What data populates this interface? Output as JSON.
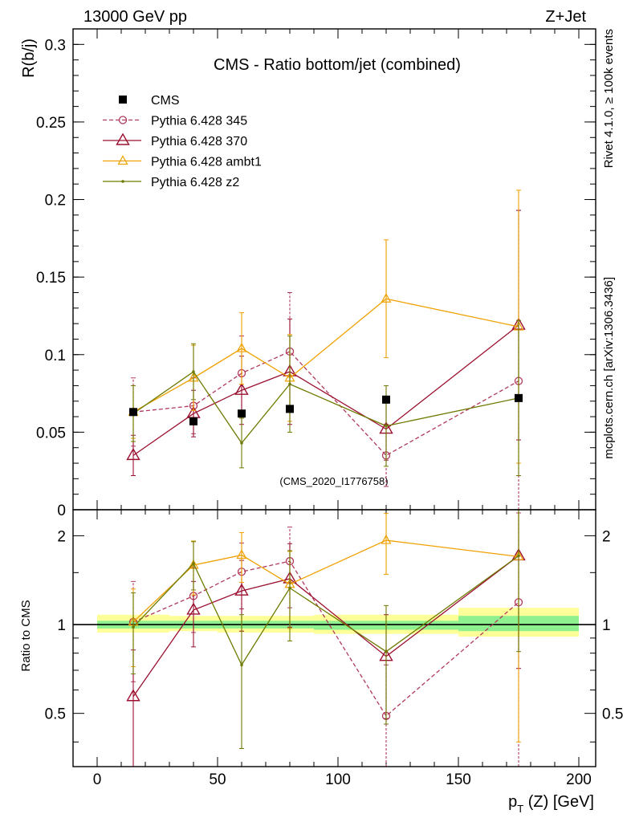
{
  "header": {
    "energy_label": "13000 GeV pp",
    "process_label": "Z+Jet"
  },
  "side_labels": {
    "rivet": "Rivet 4.1.0, ≥ 100k events",
    "mcplots": "mcplots.cern.ch [arXiv:1306.3436]"
  },
  "analysis_id": "(CMS_2020_I1776758)",
  "chart_data": [
    {
      "type": "scatter",
      "title": "CMS - Ratio bottom/jet (combined)",
      "ylabel": "R(b/j)",
      "xlabel": "p_T (Z) [GeV]",
      "xlim": [
        -10,
        207
      ],
      "ylim": [
        0,
        0.31
      ],
      "yticks": [
        0,
        0.05,
        0.1,
        0.15,
        0.2,
        0.25,
        0.3
      ],
      "ytick_labels": [
        "0",
        "0.05",
        "0.1",
        "0.15",
        "0.2",
        "0.25",
        "0.3"
      ],
      "legend_position": "top-left",
      "data": {
        "name": "CMS",
        "color": "#000000",
        "x": [
          15,
          40,
          60,
          80,
          120,
          175
        ],
        "y": [
          0.063,
          0.057,
          0.062,
          0.065,
          0.071,
          0.072
        ]
      },
      "series": [
        {
          "name": "Pythia 6.428 345",
          "color": "#b03a5a",
          "marker": "circle",
          "dashed": true,
          "x": [
            15,
            40,
            60,
            80,
            120,
            175
          ],
          "y": [
            0.063,
            0.067,
            0.088,
            0.102,
            0.035,
            0.083
          ],
          "err": [
            0.022,
            0.018,
            0.024,
            0.038,
            0.02,
            0.11
          ]
        },
        {
          "name": "Pythia 6.428 370",
          "color": "#9b1030",
          "marker": "triangle-large",
          "dashed": false,
          "x": [
            15,
            40,
            60,
            80,
            120,
            175
          ],
          "y": [
            0.035,
            0.062,
            0.077,
            0.089,
            0.052,
            0.119
          ],
          "err": [
            0.013,
            0.015,
            0.022,
            0.034,
            0.02,
            0.074
          ]
        },
        {
          "name": "Pythia 6.428 ambt1",
          "color": "#f0a000",
          "marker": "triangle-small",
          "dashed": false,
          "x": [
            15,
            40,
            60,
            80,
            120,
            175
          ],
          "y": [
            0.063,
            0.085,
            0.104,
            0.085,
            0.136,
            0.118
          ],
          "err": [
            0.017,
            0.021,
            0.023,
            0.028,
            0.038,
            0.088
          ]
        },
        {
          "name": "Pythia 6.428 z2",
          "color": "#6e7a00",
          "marker": "dot",
          "dashed": false,
          "x": [
            15,
            40,
            60,
            80,
            120,
            175
          ],
          "y": [
            0.062,
            0.089,
            0.043,
            0.081,
            0.054,
            0.072
          ],
          "err": [
            0.018,
            0.018,
            0.016,
            0.031,
            0.026,
            0.05
          ]
        }
      ]
    },
    {
      "type": "scatter",
      "ylabel": "Ratio to CMS",
      "xlabel": "p_T (Z) [GeV]",
      "xlim": [
        -10,
        207
      ],
      "ylim": [
        0.33,
        2.45
      ],
      "xticks": [
        0,
        50,
        100,
        150,
        200
      ],
      "xtick_labels": [
        "0",
        "50",
        "100",
        "150",
        "200"
      ],
      "yticks": [
        0.5,
        1,
        2
      ],
      "ytick_labels": [
        "0.5",
        "1",
        "2"
      ],
      "reference_line": 1,
      "uncertainty_bands": [
        {
          "x_from": 0,
          "x_to": 30,
          "inner": [
            0.97,
            1.03
          ],
          "outer": [
            0.94,
            1.08
          ]
        },
        {
          "x_from": 30,
          "x_to": 50,
          "inner": [
            0.97,
            1.03
          ],
          "outer": [
            0.95,
            1.07
          ]
        },
        {
          "x_from": 50,
          "x_to": 70,
          "inner": [
            0.97,
            1.03
          ],
          "outer": [
            0.94,
            1.07
          ]
        },
        {
          "x_from": 70,
          "x_to": 90,
          "inner": [
            0.97,
            1.03
          ],
          "outer": [
            0.94,
            1.07
          ]
        },
        {
          "x_from": 90,
          "x_to": 150,
          "inner": [
            0.96,
            1.03
          ],
          "outer": [
            0.93,
            1.08
          ]
        },
        {
          "x_from": 150,
          "x_to": 200,
          "inner": [
            0.95,
            1.07
          ],
          "outer": [
            0.91,
            1.14
          ]
        }
      ],
      "series": [
        {
          "name": "Pythia 6.428 345",
          "color": "#b03a5a",
          "marker": "circle",
          "dashed": true,
          "x": [
            15,
            40,
            60,
            80,
            120,
            175
          ],
          "y": [
            1.02,
            1.25,
            1.51,
            1.64,
            0.49,
            1.19
          ],
          "err": [
            0.38,
            0.31,
            0.38,
            0.5,
            0.24,
            1.2
          ]
        },
        {
          "name": "Pythia 6.428 370",
          "color": "#9b1030",
          "marker": "triangle-large",
          "dashed": false,
          "x": [
            15,
            40,
            60,
            80,
            120,
            175
          ],
          "y": [
            0.57,
            1.12,
            1.3,
            1.43,
            0.78,
            1.71
          ],
          "err": [
            0.25,
            0.28,
            0.35,
            0.45,
            0.3,
            1.0
          ]
        },
        {
          "name": "Pythia 6.428 ambt1",
          "color": "#f0a000",
          "marker": "triangle-small",
          "dashed": false,
          "x": [
            15,
            40,
            60,
            80,
            120,
            175
          ],
          "y": [
            1.02,
            1.59,
            1.72,
            1.37,
            1.93,
            1.7
          ],
          "err": [
            0.3,
            0.33,
            0.33,
            0.4,
            0.45,
            1.3
          ]
        },
        {
          "name": "Pythia 6.428 z2",
          "color": "#6e7a00",
          "marker": "dot",
          "dashed": false,
          "x": [
            15,
            40,
            60,
            80,
            120,
            175
          ],
          "y": [
            0.98,
            1.61,
            0.73,
            1.33,
            0.81,
            1.71
          ],
          "err": [
            0.3,
            0.3,
            0.35,
            0.45,
            0.35,
            0.9
          ]
        }
      ]
    }
  ]
}
